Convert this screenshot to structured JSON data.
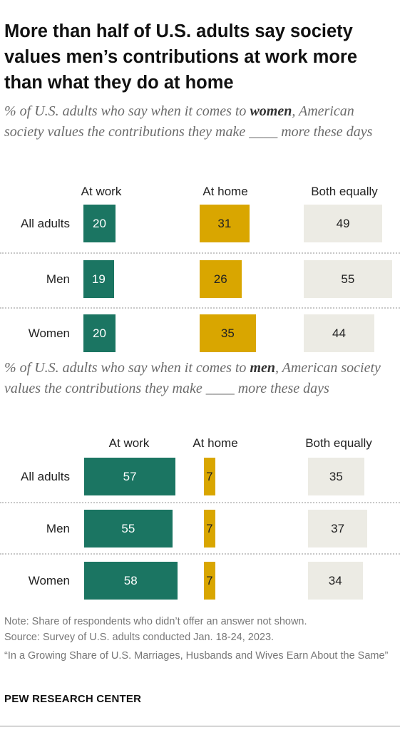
{
  "title": "More than half of U.S. adults say society values men’s contributions at work more than what they do at home",
  "footer": {
    "note": "Note: Share of respondents who didn’t offer an answer not shown.",
    "source": "Source: Survey of U.S. adults conducted Jan. 18-24, 2023.",
    "report": "“In a Growing Share of U.S. Marriages, Husbands and Wives Earn About the Same”",
    "brand": "PEW RESEARCH CENTER"
  },
  "colors": {
    "at_work": "#1b7562",
    "at_home": "#d9a600",
    "both_equally": "#ecebe4"
  },
  "chart_data": [
    {
      "type": "bar",
      "subtitle_pre": "% of U.S. adults who say when it comes to ",
      "subtitle_bold": "women",
      "subtitle_post": ", American society values the contributions they make ____ more these days",
      "categories": [
        "All adults",
        "Men",
        "Women"
      ],
      "series": [
        {
          "name": "At work",
          "values": [
            20,
            19,
            20
          ]
        },
        {
          "name": "At home",
          "values": [
            31,
            26,
            35
          ]
        },
        {
          "name": "Both equally",
          "values": [
            49,
            55,
            44
          ]
        }
      ]
    },
    {
      "type": "bar",
      "subtitle_pre": "% of U.S. adults who say when it comes to ",
      "subtitle_bold": "men",
      "subtitle_post": ", American society values the contributions they make ____ more these days",
      "categories": [
        "All adults",
        "Men",
        "Women"
      ],
      "series": [
        {
          "name": "At work",
          "values": [
            57,
            55,
            58
          ]
        },
        {
          "name": "At home",
          "values": [
            7,
            7,
            7
          ]
        },
        {
          "name": "Both equally",
          "values": [
            35,
            37,
            34
          ]
        }
      ]
    }
  ]
}
